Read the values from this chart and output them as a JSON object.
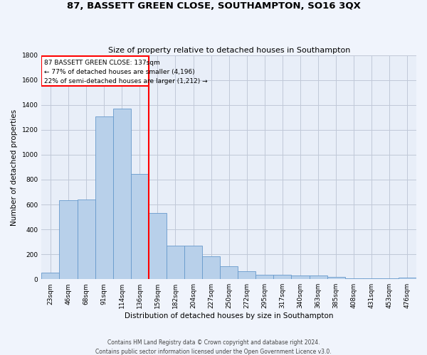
{
  "title": "87, BASSETT GREEN CLOSE, SOUTHAMPTON, SO16 3QX",
  "subtitle": "Size of property relative to detached houses in Southampton",
  "xlabel": "Distribution of detached houses by size in Southampton",
  "ylabel": "Number of detached properties",
  "bar_color": "#b8d0ea",
  "bar_edge_color": "#6699cc",
  "background_color": "#e8eef8",
  "grid_color": "#c0c8d8",
  "fig_facecolor": "#f0f4fc",
  "categories": [
    "23sqm",
    "46sqm",
    "68sqm",
    "91sqm",
    "114sqm",
    "136sqm",
    "159sqm",
    "182sqm",
    "204sqm",
    "227sqm",
    "250sqm",
    "272sqm",
    "295sqm",
    "317sqm",
    "340sqm",
    "363sqm",
    "385sqm",
    "408sqm",
    "431sqm",
    "453sqm",
    "476sqm"
  ],
  "values": [
    50,
    635,
    640,
    1305,
    1370,
    845,
    530,
    270,
    270,
    185,
    105,
    65,
    37,
    37,
    28,
    28,
    18,
    8,
    5,
    5,
    12
  ],
  "ylim": [
    0,
    1800
  ],
  "yticks": [
    0,
    200,
    400,
    600,
    800,
    1000,
    1200,
    1400,
    1600,
    1800
  ],
  "vline_x_index": 5,
  "annotation_title": "87 BASSETT GREEN CLOSE: 137sqm",
  "annotation_line1": "← 77% of detached houses are smaller (4,196)",
  "annotation_line2": "22% of semi-detached houses are larger (1,212) →",
  "footer1": "Contains HM Land Registry data © Crown copyright and database right 2024.",
  "footer2": "Contains public sector information licensed under the Open Government Licence v3.0."
}
